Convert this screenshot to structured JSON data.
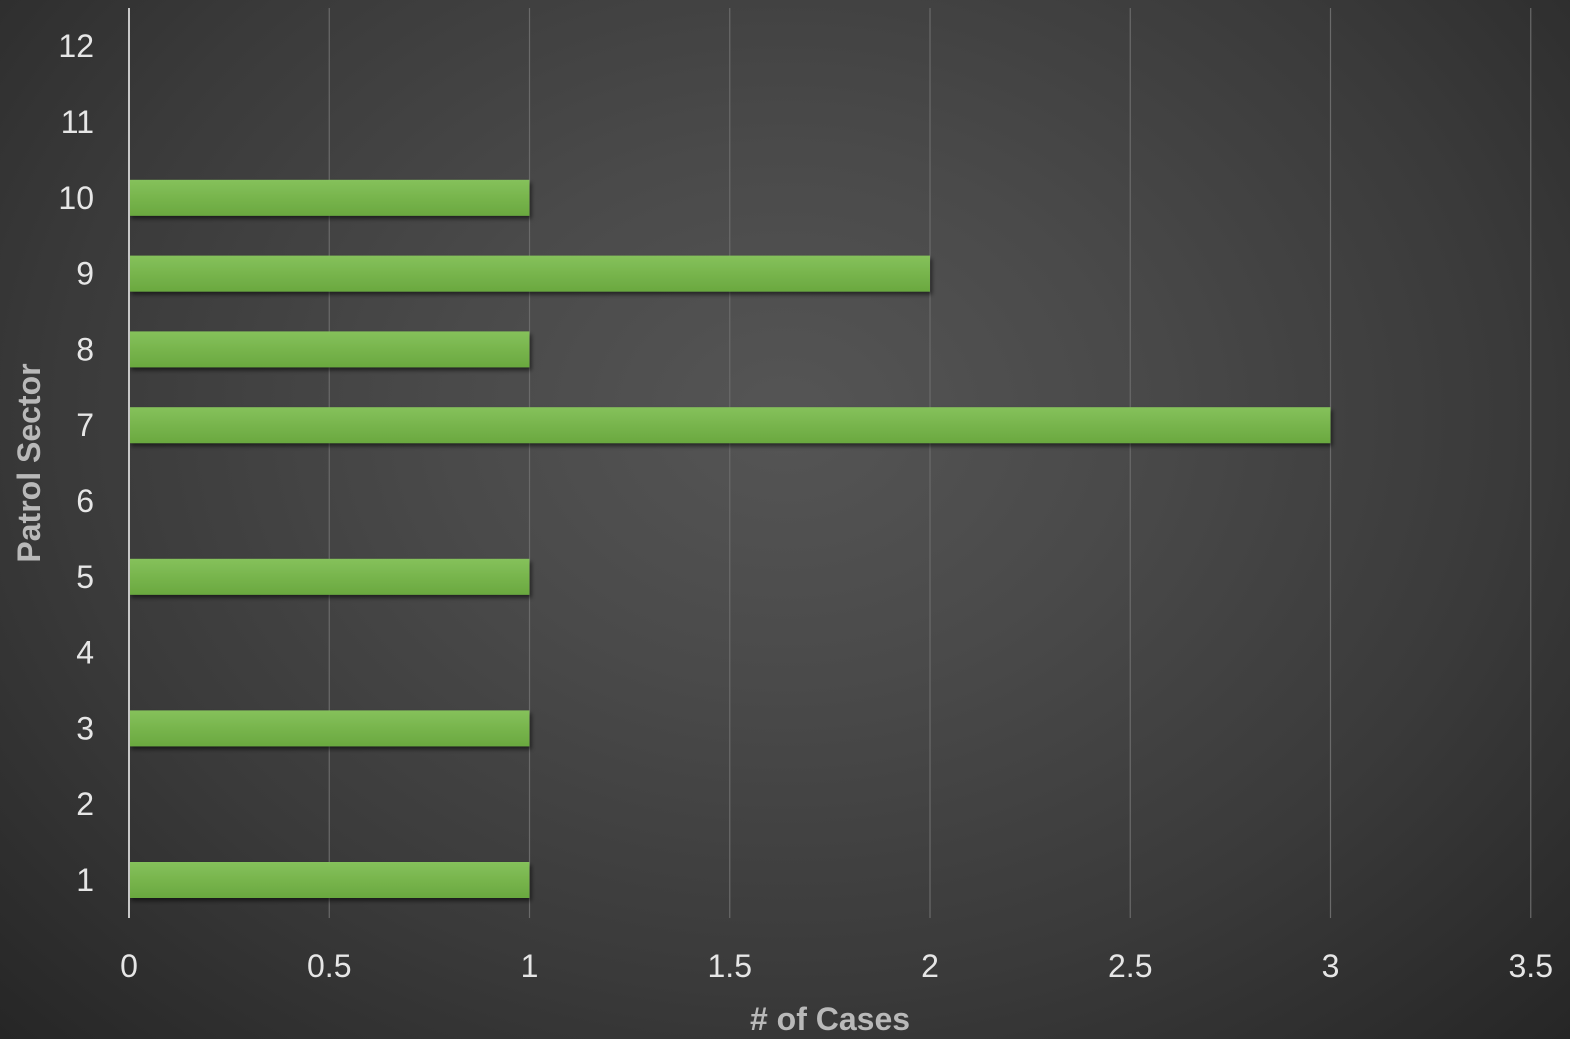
{
  "chart_data": {
    "type": "bar",
    "orientation": "horizontal",
    "categories": [
      "1",
      "2",
      "3",
      "4",
      "5",
      "6",
      "7",
      "8",
      "9",
      "10",
      "11",
      "12"
    ],
    "values": [
      1,
      0,
      1,
      0,
      1,
      0,
      3,
      1,
      2,
      1,
      0,
      0
    ],
    "xlabel": "# of Cases",
    "ylabel": "Patrol Sector",
    "xlim": [
      0,
      3.5
    ],
    "xticks": [
      "0",
      "0.5",
      "1",
      "1.5",
      "2",
      "2.5",
      "3",
      "3.5"
    ],
    "grid": true,
    "legend": "none",
    "colors": {
      "bar": "#70ad47",
      "bar_highlight": "#82c055",
      "gridline": "#6a6a6a",
      "axis_line": "#c8c8c8",
      "tick_text": "#e6e6e6",
      "axis_title": "#b9b9b9"
    }
  }
}
